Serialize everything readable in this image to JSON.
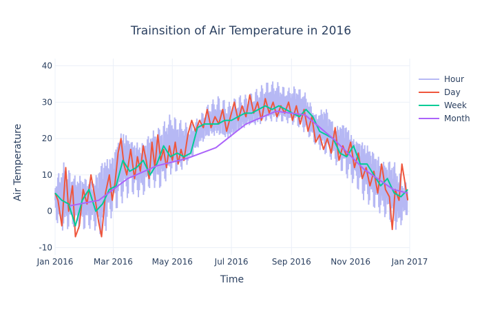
{
  "chart_data": {
    "type": "line",
    "title": "Trainsition of Air Temperature in 2016",
    "xlabel": "Time",
    "ylabel": "Air Temperature",
    "xlim": [
      "2016-01-01",
      "2016-12-31"
    ],
    "ylim": [
      -12,
      42
    ],
    "x_ticks": [
      {
        "date": "2016-01-01",
        "label": "Jan 2016"
      },
      {
        "date": "2016-03-01",
        "label": "Mar 2016"
      },
      {
        "date": "2016-05-01",
        "label": "May 2016"
      },
      {
        "date": "2016-07-01",
        "label": "Jul 2016"
      },
      {
        "date": "2016-09-01",
        "label": "Sep 2016"
      },
      {
        "date": "2016-11-01",
        "label": "Nov 2016"
      },
      {
        "date": "2017-01-01",
        "label": "Jan 2017"
      }
    ],
    "y_ticks": [
      -10,
      0,
      10,
      20,
      30,
      40
    ],
    "grid": true,
    "legend_position": "top-right",
    "series": [
      {
        "name": "Hour",
        "color": "#b6b8f4",
        "smoothing": "hourly",
        "min": [
          [
            1,
            -4
          ],
          [
            10,
            -8
          ],
          [
            20,
            -6
          ],
          [
            30,
            -7
          ],
          [
            40,
            -6
          ],
          [
            50,
            -10
          ],
          [
            60,
            -3
          ],
          [
            70,
            0
          ],
          [
            80,
            3
          ],
          [
            90,
            2
          ],
          [
            100,
            5
          ],
          [
            110,
            4
          ],
          [
            120,
            8
          ],
          [
            130,
            9
          ],
          [
            140,
            12
          ],
          [
            150,
            17
          ],
          [
            160,
            19
          ],
          [
            170,
            19
          ],
          [
            180,
            18
          ],
          [
            190,
            20
          ],
          [
            200,
            22
          ],
          [
            210,
            22
          ],
          [
            220,
            23
          ],
          [
            230,
            23
          ],
          [
            240,
            23
          ],
          [
            250,
            22
          ],
          [
            260,
            20
          ],
          [
            270,
            17
          ],
          [
            280,
            14
          ],
          [
            290,
            12
          ],
          [
            300,
            8
          ],
          [
            310,
            6
          ],
          [
            320,
            1
          ],
          [
            330,
            -1
          ],
          [
            340,
            -3
          ],
          [
            350,
            -6
          ],
          [
            355,
            -8
          ],
          [
            360,
            -4
          ],
          [
            365,
            -2
          ]
        ],
        "max": [
          [
            1,
            10
          ],
          [
            10,
            16
          ],
          [
            20,
            12
          ],
          [
            30,
            12
          ],
          [
            40,
            10
          ],
          [
            50,
            18
          ],
          [
            60,
            18
          ],
          [
            70,
            26
          ],
          [
            80,
            22
          ],
          [
            90,
            21
          ],
          [
            100,
            24
          ],
          [
            110,
            26
          ],
          [
            120,
            29
          ],
          [
            130,
            27
          ],
          [
            140,
            25
          ],
          [
            150,
            27
          ],
          [
            160,
            31
          ],
          [
            170,
            33
          ],
          [
            180,
            31
          ],
          [
            190,
            33
          ],
          [
            200,
            33
          ],
          [
            210,
            35
          ],
          [
            220,
            37
          ],
          [
            230,
            37
          ],
          [
            240,
            35
          ],
          [
            250,
            36
          ],
          [
            260,
            34
          ],
          [
            270,
            28
          ],
          [
            280,
            31
          ],
          [
            290,
            25
          ],
          [
            300,
            27
          ],
          [
            310,
            22
          ],
          [
            320,
            22
          ],
          [
            330,
            19
          ],
          [
            340,
            16
          ],
          [
            350,
            17
          ],
          [
            355,
            14
          ],
          [
            360,
            10
          ],
          [
            365,
            9
          ]
        ]
      },
      {
        "name": "Day",
        "color": "#ef553b",
        "smoothing": "daily",
        "points": [
          [
            1,
            5
          ],
          [
            4,
            3
          ],
          [
            8,
            -4
          ],
          [
            12,
            12
          ],
          [
            15,
            0
          ],
          [
            19,
            7
          ],
          [
            22,
            -7
          ],
          [
            26,
            -4
          ],
          [
            30,
            6
          ],
          [
            34,
            2
          ],
          [
            38,
            10
          ],
          [
            42,
            4
          ],
          [
            46,
            -3
          ],
          [
            49,
            -7
          ],
          [
            53,
            5
          ],
          [
            57,
            10
          ],
          [
            60,
            3
          ],
          [
            63,
            8
          ],
          [
            66,
            16
          ],
          [
            69,
            20
          ],
          [
            72,
            13
          ],
          [
            75,
            10
          ],
          [
            79,
            17
          ],
          [
            83,
            9
          ],
          [
            86,
            15
          ],
          [
            89,
            11
          ],
          [
            92,
            18
          ],
          [
            95,
            14
          ],
          [
            98,
            9
          ],
          [
            101,
            19
          ],
          [
            104,
            12
          ],
          [
            107,
            21
          ],
          [
            110,
            14
          ],
          [
            113,
            17
          ],
          [
            116,
            12
          ],
          [
            119,
            18
          ],
          [
            122,
            14
          ],
          [
            125,
            19
          ],
          [
            128,
            13
          ],
          [
            131,
            17
          ],
          [
            134,
            14
          ],
          [
            138,
            21
          ],
          [
            142,
            25
          ],
          [
            146,
            22
          ],
          [
            150,
            25
          ],
          [
            154,
            23
          ],
          [
            158,
            28
          ],
          [
            162,
            23
          ],
          [
            166,
            26
          ],
          [
            170,
            24
          ],
          [
            174,
            28
          ],
          [
            178,
            22
          ],
          [
            182,
            26
          ],
          [
            186,
            30
          ],
          [
            190,
            25
          ],
          [
            194,
            29
          ],
          [
            198,
            26
          ],
          [
            202,
            32
          ],
          [
            206,
            27
          ],
          [
            210,
            30
          ],
          [
            214,
            25
          ],
          [
            218,
            31
          ],
          [
            222,
            27
          ],
          [
            226,
            30
          ],
          [
            230,
            26
          ],
          [
            234,
            29
          ],
          [
            238,
            27
          ],
          [
            242,
            30
          ],
          [
            246,
            25
          ],
          [
            250,
            29
          ],
          [
            254,
            24
          ],
          [
            258,
            28
          ],
          [
            262,
            22
          ],
          [
            266,
            26
          ],
          [
            270,
            19
          ],
          [
            274,
            21
          ],
          [
            278,
            17
          ],
          [
            282,
            20
          ],
          [
            286,
            16
          ],
          [
            290,
            23
          ],
          [
            294,
            14
          ],
          [
            298,
            18
          ],
          [
            302,
            15
          ],
          [
            306,
            19
          ],
          [
            310,
            12
          ],
          [
            314,
            16
          ],
          [
            318,
            9
          ],
          [
            322,
            12
          ],
          [
            326,
            7
          ],
          [
            330,
            11
          ],
          [
            334,
            5
          ],
          [
            338,
            13
          ],
          [
            342,
            6
          ],
          [
            346,
            4
          ],
          [
            349,
            -5
          ],
          [
            352,
            6
          ],
          [
            356,
            3
          ],
          [
            359,
            13
          ],
          [
            362,
            8
          ],
          [
            365,
            3
          ]
        ]
      },
      {
        "name": "Week",
        "color": "#00cc96",
        "smoothing": "weekly",
        "points": [
          [
            1,
            5
          ],
          [
            8,
            3
          ],
          [
            15,
            2
          ],
          [
            22,
            -4
          ],
          [
            29,
            3
          ],
          [
            36,
            6
          ],
          [
            43,
            0
          ],
          [
            50,
            2
          ],
          [
            57,
            6
          ],
          [
            64,
            7
          ],
          [
            71,
            14
          ],
          [
            78,
            11
          ],
          [
            85,
            12
          ],
          [
            92,
            14
          ],
          [
            99,
            10
          ],
          [
            106,
            13
          ],
          [
            113,
            18
          ],
          [
            120,
            15
          ],
          [
            127,
            16
          ],
          [
            134,
            15
          ],
          [
            141,
            16
          ],
          [
            148,
            23
          ],
          [
            155,
            24
          ],
          [
            162,
            24
          ],
          [
            169,
            24
          ],
          [
            176,
            25
          ],
          [
            183,
            25
          ],
          [
            190,
            26
          ],
          [
            197,
            27
          ],
          [
            204,
            27
          ],
          [
            211,
            28
          ],
          [
            218,
            29
          ],
          [
            225,
            28
          ],
          [
            232,
            29
          ],
          [
            239,
            28
          ],
          [
            246,
            27
          ],
          [
            253,
            26
          ],
          [
            260,
            28
          ],
          [
            267,
            26
          ],
          [
            274,
            22
          ],
          [
            281,
            21
          ],
          [
            288,
            20
          ],
          [
            295,
            16
          ],
          [
            302,
            15
          ],
          [
            309,
            18
          ],
          [
            316,
            13
          ],
          [
            323,
            13
          ],
          [
            330,
            10
          ],
          [
            337,
            7
          ],
          [
            344,
            9
          ],
          [
            351,
            5
          ],
          [
            358,
            4
          ],
          [
            365,
            6
          ]
        ]
      },
      {
        "name": "Month",
        "color": "#ab63fa",
        "smoothing": "monthly",
        "points": [
          [
            16,
            1.5
          ],
          [
            46,
            3
          ],
          [
            76,
            9
          ],
          [
            106,
            12.5
          ],
          [
            137,
            14.5
          ],
          [
            167,
            17.5
          ],
          [
            198,
            24
          ],
          [
            229,
            27.5
          ],
          [
            259,
            26.5
          ],
          [
            290,
            19.5
          ],
          [
            320,
            11.5
          ],
          [
            350,
            6
          ],
          [
            365,
            5
          ]
        ]
      }
    ]
  }
}
